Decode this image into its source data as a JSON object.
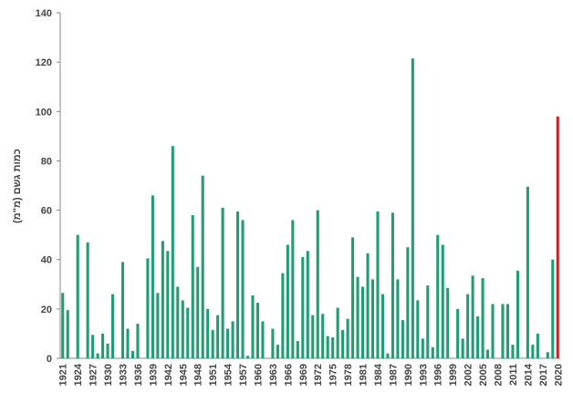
{
  "chart_data": {
    "type": "bar",
    "y_label": "כמות גשם (מ\"מ)",
    "categories": [
      "1921",
      null,
      null,
      "1924",
      null,
      null,
      "1927",
      null,
      null,
      "1930",
      null,
      null,
      "1933",
      null,
      null,
      "1936",
      null,
      null,
      "1939",
      null,
      null,
      "1942",
      null,
      null,
      "1945",
      null,
      null,
      "1948",
      null,
      null,
      "1951",
      null,
      null,
      "1954",
      null,
      null,
      "1957",
      null,
      null,
      "1960",
      null,
      null,
      "1963",
      null,
      null,
      "1966",
      null,
      null,
      "1969",
      null,
      null,
      "1972",
      null,
      null,
      "1975",
      null,
      null,
      "1978",
      null,
      null,
      "1981",
      null,
      null,
      "1984",
      null,
      null,
      "1987",
      null,
      null,
      "1990",
      null,
      null,
      "1993",
      null,
      null,
      "1996",
      null,
      null,
      "1999",
      null,
      null,
      "2002",
      null,
      null,
      "2005",
      null,
      null,
      "2008",
      null,
      null,
      "2011",
      null,
      null,
      "2014",
      null,
      null,
      "2017",
      null,
      null,
      "2020"
    ],
    "values": [
      26.5,
      19.5,
      0,
      50,
      0,
      47,
      9.5,
      2,
      10,
      6,
      26,
      0,
      39,
      12,
      3,
      14,
      0,
      40.5,
      66,
      26.5,
      47.5,
      43.5,
      86,
      29,
      23.5,
      20.5,
      58,
      37,
      74,
      20,
      11.5,
      17.5,
      61,
      12,
      15,
      59.5,
      56,
      1,
      25.5,
      22.5,
      15,
      0,
      12,
      5.5,
      34.5,
      46,
      56,
      7,
      41,
      43.5,
      17.5,
      60,
      18,
      9,
      8.5,
      20.5,
      11.5,
      16,
      49,
      33,
      29,
      42.5,
      32,
      59.5,
      26,
      2,
      59,
      32,
      15.5,
      45,
      121.5,
      23.5,
      8,
      29.5,
      4.5,
      50,
      46,
      28.5,
      0,
      20,
      8,
      26,
      33.5,
      17,
      32.5,
      3.5,
      22,
      0,
      22,
      22,
      5.5,
      35.5,
      0,
      69.5,
      5.5,
      10,
      0,
      2.5,
      40,
      98
    ],
    "colors": [
      "#1f9e72",
      "#1f9e72",
      "#1f9e72",
      "#1f9e72",
      "#1f9e72",
      "#1f9e72",
      "#1f9e72",
      "#1f9e72",
      "#1f9e72",
      "#1f9e72",
      "#1f9e72",
      "#1f9e72",
      "#1f9e72",
      "#1f9e72",
      "#1f9e72",
      "#1f9e72",
      "#1f9e72",
      "#1f9e72",
      "#1f9e72",
      "#1f9e72",
      "#1f9e72",
      "#1f9e72",
      "#1f9e72",
      "#1f9e72",
      "#1f9e72",
      "#1f9e72",
      "#1f9e72",
      "#1f9e72",
      "#1f9e72",
      "#1f9e72",
      "#1f9e72",
      "#1f9e72",
      "#1f9e72",
      "#1f9e72",
      "#1f9e72",
      "#1f9e72",
      "#1f9e72",
      "#1f9e72",
      "#1f9e72",
      "#1f9e72",
      "#1f9e72",
      "#1f9e72",
      "#1f9e72",
      "#1f9e72",
      "#1f9e72",
      "#1f9e72",
      "#1f9e72",
      "#1f9e72",
      "#1f9e72",
      "#1f9e72",
      "#1f9e72",
      "#1f9e72",
      "#1f9e72",
      "#1f9e72",
      "#1f9e72",
      "#1f9e72",
      "#1f9e72",
      "#1f9e72",
      "#1f9e72",
      "#1f9e72",
      "#1f9e72",
      "#1f9e72",
      "#1f9e72",
      "#1f9e72",
      "#1f9e72",
      "#1f9e72",
      "#1f9e72",
      "#1f9e72",
      "#1f9e72",
      "#1f9e72",
      "#1f9e72",
      "#1f9e72",
      "#1f9e72",
      "#1f9e72",
      "#1f9e72",
      "#1f9e72",
      "#1f9e72",
      "#1f9e72",
      "#1f9e72",
      "#1f9e72",
      "#1f9e72",
      "#1f9e72",
      "#1f9e72",
      "#1f9e72",
      "#1f9e72",
      "#1f9e72",
      "#1f9e72",
      "#1f9e72",
      "#1f9e72",
      "#1f9e72",
      "#1f9e72",
      "#1f9e72",
      "#1f9e72",
      "#1f9e72",
      "#1f9e72",
      "#1f9e72",
      "#1f9e72",
      "#1f9e72",
      "#1f9e72",
      "#c0282d"
    ],
    "ylim": [
      0,
      140
    ],
    "yticks": [
      0,
      20,
      40,
      60,
      80,
      100,
      120,
      140
    ],
    "grid": false
  }
}
